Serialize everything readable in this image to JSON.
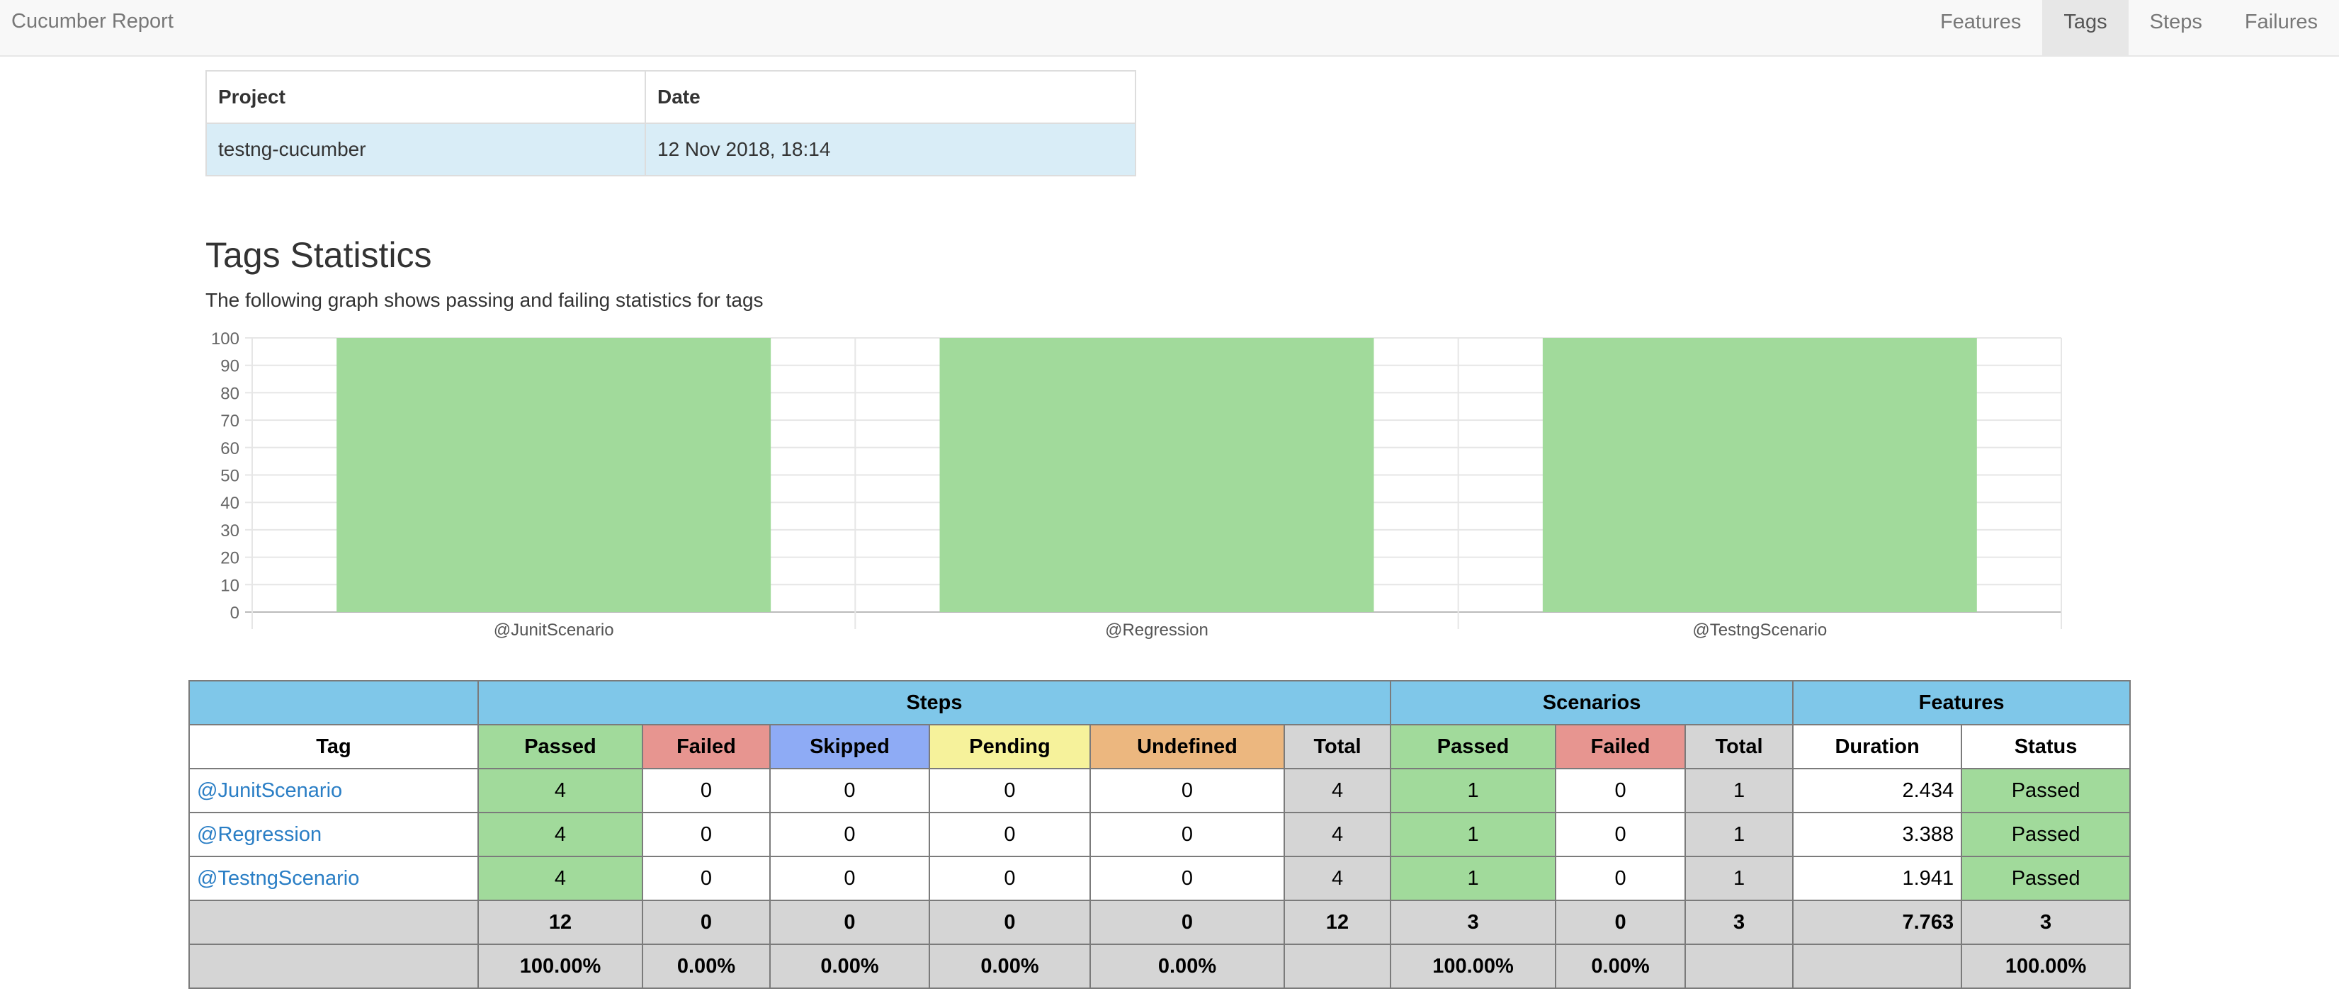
{
  "navbar": {
    "brand": "Cucumber Report",
    "items": [
      {
        "label": "Features",
        "active": false
      },
      {
        "label": "Tags",
        "active": true
      },
      {
        "label": "Steps",
        "active": false
      },
      {
        "label": "Failures",
        "active": false
      }
    ]
  },
  "project_table": {
    "headers": [
      "Project",
      "Date"
    ],
    "values": [
      "testng-cucumber",
      "12 Nov 2018, 18:14"
    ]
  },
  "page": {
    "title": "Tags Statistics",
    "description": "The following graph shows passing and failing statistics for tags"
  },
  "chart_data": {
    "type": "bar",
    "categories": [
      "@JunitScenario",
      "@Regression",
      "@TestngScenario"
    ],
    "series": [
      {
        "values": [
          100,
          100,
          100
        ]
      }
    ],
    "ylim": [
      0,
      100
    ],
    "yticks": [
      0,
      10,
      20,
      30,
      40,
      50,
      60,
      70,
      80,
      90,
      100
    ],
    "grid": true,
    "colors": {
      "passed": "#a1da9b"
    }
  },
  "stats": {
    "group_headers": {
      "steps": "Steps",
      "scenarios": "Scenarios",
      "features": "Features"
    },
    "columns": {
      "tag": "Tag",
      "steps_passed": "Passed",
      "steps_failed": "Failed",
      "steps_skipped": "Skipped",
      "steps_pending": "Pending",
      "steps_undefined": "Undefined",
      "steps_total": "Total",
      "sc_passed": "Passed",
      "sc_failed": "Failed",
      "sc_total": "Total",
      "duration": "Duration",
      "status": "Status"
    },
    "rows": [
      {
        "tag": "@JunitScenario",
        "passed": "4",
        "failed": "0",
        "skipped": "0",
        "pending": "0",
        "undefined": "0",
        "total": "4",
        "sc_passed": "1",
        "sc_failed": "0",
        "sc_total": "1",
        "duration": "2.434",
        "status": "Passed"
      },
      {
        "tag": "@Regression",
        "passed": "4",
        "failed": "0",
        "skipped": "0",
        "pending": "0",
        "undefined": "0",
        "total": "4",
        "sc_passed": "1",
        "sc_failed": "0",
        "sc_total": "1",
        "duration": "3.388",
        "status": "Passed"
      },
      {
        "tag": "@TestngScenario",
        "passed": "4",
        "failed": "0",
        "skipped": "0",
        "pending": "0",
        "undefined": "0",
        "total": "4",
        "sc_passed": "1",
        "sc_failed": "0",
        "sc_total": "1",
        "duration": "1.941",
        "status": "Passed"
      }
    ],
    "totals": {
      "passed": "12",
      "failed": "0",
      "skipped": "0",
      "pending": "0",
      "undefined": "0",
      "total": "12",
      "sc_passed": "3",
      "sc_failed": "0",
      "sc_total": "3",
      "duration": "7.763",
      "status": "3"
    },
    "percentages": {
      "passed": "100.00%",
      "failed": "0.00%",
      "skipped": "0.00%",
      "pending": "0.00%",
      "undefined": "0.00%",
      "sc_passed": "100.00%",
      "sc_failed": "0.00%",
      "status": "100.00%"
    }
  }
}
